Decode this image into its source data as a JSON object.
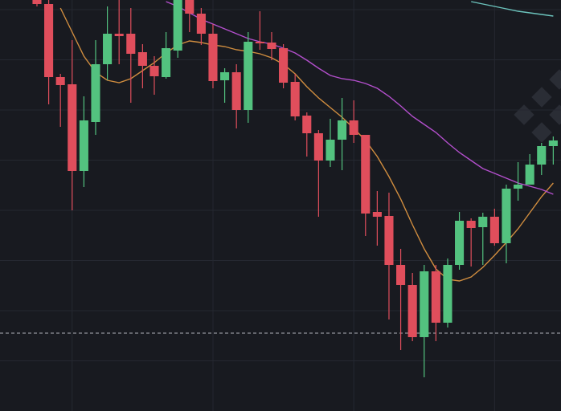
{
  "chart_data": {
    "type": "candlestick",
    "x": [
      0,
      1,
      2,
      3,
      4,
      5,
      6,
      7,
      8,
      9,
      10,
      11,
      12,
      13,
      14,
      15,
      16,
      17,
      18,
      19,
      20,
      21,
      22,
      23,
      24,
      25,
      26,
      27,
      28,
      29,
      30,
      31,
      32,
      33,
      34,
      35,
      36,
      37,
      38,
      39,
      40,
      41,
      42,
      43,
      44
    ],
    "open": [
      512,
      507,
      416,
      407,
      299,
      360,
      432,
      470,
      470,
      447,
      430,
      416,
      449,
      512,
      495,
      470,
      412,
      422,
      375,
      460,
      459,
      452,
      410,
      368,
      346,
      312,
      338,
      362,
      344,
      248,
      243,
      182,
      157,
      92,
      174,
      110,
      182,
      237,
      229,
      242,
      209,
      277,
      282,
      307,
      330
    ],
    "high": [
      516,
      516,
      420,
      462,
      392,
      462,
      504,
      512,
      502,
      457,
      442,
      472,
      516,
      517,
      502,
      482,
      427,
      432,
      472,
      498,
      472,
      457,
      420,
      372,
      350,
      364,
      390,
      387,
      344,
      274,
      272,
      202,
      172,
      182,
      182,
      190,
      248,
      240,
      247,
      252,
      282,
      310,
      320,
      334,
      342
    ],
    "low": [
      504,
      382,
      354,
      250,
      279,
      344,
      412,
      432,
      384,
      402,
      394,
      414,
      440,
      472,
      456,
      402,
      384,
      352,
      359,
      450,
      437,
      402,
      362,
      317,
      242,
      304,
      300,
      334,
      218,
      206,
      114,
      76,
      87,
      42,
      87,
      104,
      176,
      180,
      182,
      206,
      184,
      262,
      282,
      294,
      307
    ],
    "close": [
      507,
      416,
      406,
      299,
      362,
      432,
      470,
      467,
      445,
      430,
      417,
      452,
      512,
      495,
      470,
      411,
      422,
      375,
      460,
      458,
      451,
      409,
      367,
      346,
      312,
      338,
      362,
      344,
      246,
      242,
      182,
      157,
      92,
      174,
      110,
      182,
      237,
      228,
      242,
      209,
      277,
      282,
      307,
      330,
      337
    ],
    "up_color": "#53c27f",
    "down_color": "#e04e5c",
    "lines": [
      {
        "color": "#d08d3f",
        "values": [
          null,
          null,
          502,
          472,
          442,
          422,
          412,
          409,
          414,
          424,
          434,
          446,
          456,
          461,
          459,
          456,
          454,
          450,
          448,
          445,
          440,
          432,
          420,
          404,
          390,
          378,
          366,
          352,
          337,
          317,
          292,
          264,
          232,
          202,
          177,
          164,
          162,
          167,
          179,
          194,
          210,
          227,
          247,
          267,
          284
        ]
      },
      {
        "color": "#b34fcc",
        "values": [
          null,
          null,
          null,
          null,
          null,
          null,
          null,
          null,
          null,
          null,
          null,
          510,
          504,
          496,
          488,
          482,
          476,
          470,
          464,
          460,
          457,
          452,
          446,
          437,
          427,
          418,
          414,
          412,
          408,
          402,
          392,
          380,
          367,
          357,
          347,
          334,
          322,
          312,
          302,
          296,
          290,
          284,
          280,
          276,
          270
        ]
      },
      {
        "color": "#6cc4bd",
        "values": [
          null,
          null,
          null,
          null,
          null,
          null,
          null,
          null,
          null,
          null,
          null,
          null,
          null,
          null,
          null,
          null,
          null,
          null,
          null,
          null,
          null,
          null,
          null,
          null,
          null,
          null,
          null,
          null,
          null,
          null,
          null,
          null,
          null,
          null,
          null,
          null,
          null,
          510,
          507,
          504,
          501,
          498,
          496,
          494,
          492
        ]
      }
    ],
    "price_line": 97,
    "xlim": [
      -3.15,
      44.66
    ],
    "xticks": [
      3,
      15,
      27,
      39
    ],
    "ylim": [
      0,
      512
    ],
    "yticks": [
      62.5,
      125,
      187.5,
      250,
      312.5,
      375,
      437.5,
      500
    ],
    "grid": true
  }
}
